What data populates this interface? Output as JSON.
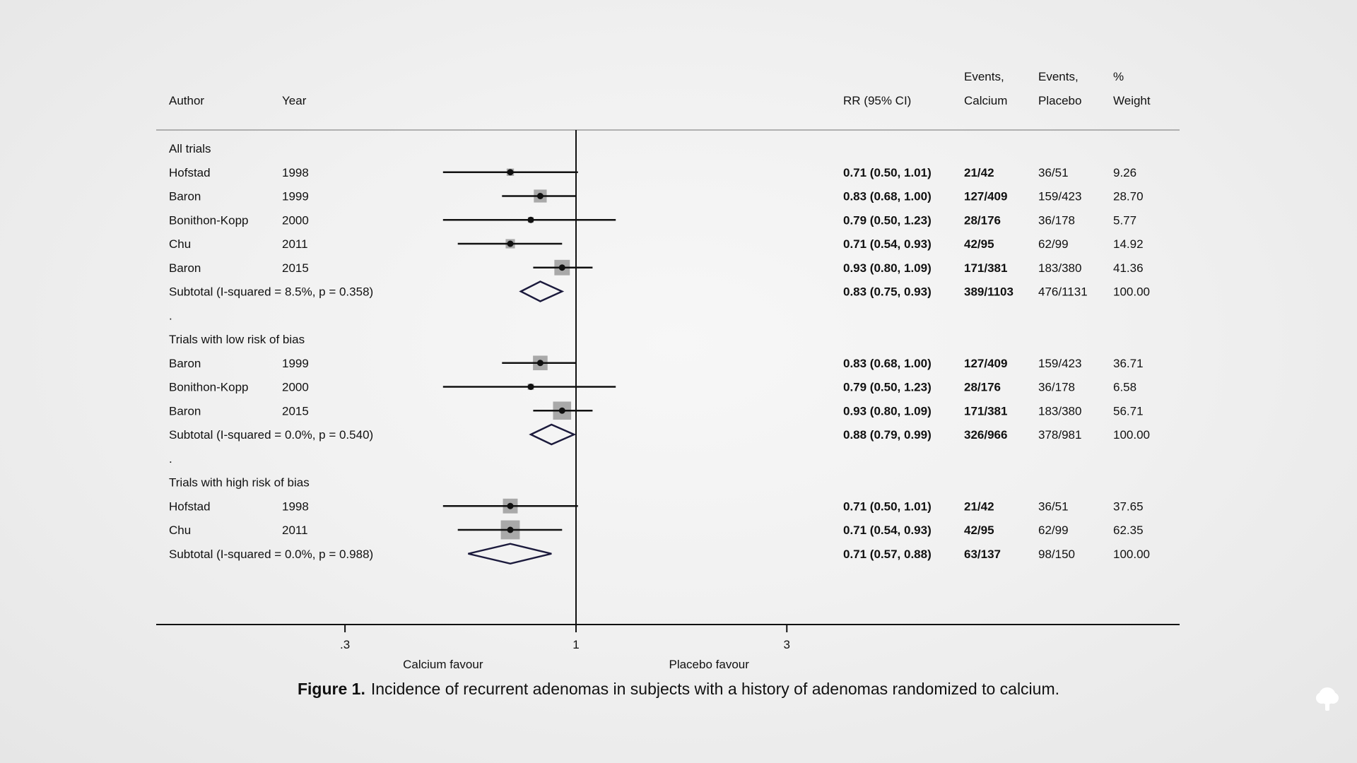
{
  "header": {
    "author": "Author",
    "year": "Year",
    "rr": "RR (95% CI)",
    "events_calcium_1": "Events,",
    "events_calcium_2": "Calcium",
    "events_placebo_1": "Events,",
    "events_placebo_2": "Placebo",
    "weight_1": "%",
    "weight_2": "Weight"
  },
  "rows": [
    {
      "kind": "group",
      "label": "All trials"
    },
    {
      "kind": "study",
      "author": "Hofstad",
      "year": "1998",
      "rr": 0.71,
      "lo": 0.5,
      "hi": 1.01,
      "ci": "0.71 (0.50, 1.01)",
      "ev_ca": "21/42",
      "ev_pl": "36/51",
      "weight": "9.26"
    },
    {
      "kind": "study",
      "author": "Baron",
      "year": "1999",
      "rr": 0.83,
      "lo": 0.68,
      "hi": 1.0,
      "ci": "0.83 (0.68, 1.00)",
      "ev_ca": "127/409",
      "ev_pl": "159/423",
      "weight": "28.70"
    },
    {
      "kind": "study",
      "author": "Bonithon-Kopp",
      "year": "2000",
      "rr": 0.79,
      "lo": 0.5,
      "hi": 1.23,
      "ci": "0.79 (0.50, 1.23)",
      "ev_ca": "28/176",
      "ev_pl": "36/178",
      "weight": "5.77"
    },
    {
      "kind": "study",
      "author": "Chu",
      "year": "2011",
      "rr": 0.71,
      "lo": 0.54,
      "hi": 0.93,
      "ci": "0.71 (0.54, 0.93)",
      "ev_ca": "42/95",
      "ev_pl": "62/99",
      "weight": "14.92"
    },
    {
      "kind": "study",
      "author": "Baron",
      "year": "2015",
      "rr": 0.93,
      "lo": 0.8,
      "hi": 1.09,
      "ci": "0.93 (0.80, 1.09)",
      "ev_ca": "171/381",
      "ev_pl": "183/380",
      "weight": "41.36"
    },
    {
      "kind": "subtotal",
      "label": "Subtotal  (I-squared = 8.5%, p = 0.358)",
      "rr": 0.83,
      "lo": 0.75,
      "hi": 0.93,
      "ci": "0.83 (0.75, 0.93)",
      "ev_ca": "389/1103",
      "ev_pl": "476/1131",
      "weight": "100.00"
    },
    {
      "kind": "spacer",
      "label": "."
    },
    {
      "kind": "group",
      "label": "Trials with low risk of bias"
    },
    {
      "kind": "study",
      "author": "Baron",
      "year": "1999",
      "rr": 0.83,
      "lo": 0.68,
      "hi": 1.0,
      "ci": "0.83 (0.68, 1.00)",
      "ev_ca": "127/409",
      "ev_pl": "159/423",
      "weight": "36.71"
    },
    {
      "kind": "study",
      "author": "Bonithon-Kopp",
      "year": "2000",
      "rr": 0.79,
      "lo": 0.5,
      "hi": 1.23,
      "ci": "0.79 (0.50, 1.23)",
      "ev_ca": "28/176",
      "ev_pl": "36/178",
      "weight": "6.58"
    },
    {
      "kind": "study",
      "author": "Baron",
      "year": "2015",
      "rr": 0.93,
      "lo": 0.8,
      "hi": 1.09,
      "ci": "0.93 (0.80, 1.09)",
      "ev_ca": "171/381",
      "ev_pl": "183/380",
      "weight": "56.71"
    },
    {
      "kind": "subtotal",
      "label": "Subtotal  (I-squared = 0.0%, p = 0.540)",
      "rr": 0.88,
      "lo": 0.79,
      "hi": 0.99,
      "ci": "0.88 (0.79, 0.99)",
      "ev_ca": "326/966",
      "ev_pl": "378/981",
      "weight": "100.00"
    },
    {
      "kind": "spacer",
      "label": "."
    },
    {
      "kind": "group",
      "label": "Trials with high risk of bias"
    },
    {
      "kind": "study",
      "author": "Hofstad",
      "year": "1998",
      "rr": 0.71,
      "lo": 0.5,
      "hi": 1.01,
      "ci": "0.71 (0.50, 1.01)",
      "ev_ca": "21/42",
      "ev_pl": "36/51",
      "weight": "37.65"
    },
    {
      "kind": "study",
      "author": "Chu",
      "year": "2011",
      "rr": 0.71,
      "lo": 0.54,
      "hi": 0.93,
      "ci": "0.71 (0.54, 0.93)",
      "ev_ca": "42/95",
      "ev_pl": "62/99",
      "weight": "62.35"
    },
    {
      "kind": "subtotal",
      "label": "Subtotal  (I-squared = 0.0%, p = 0.988)",
      "rr": 0.71,
      "lo": 0.57,
      "hi": 0.88,
      "ci": "0.71 (0.57, 0.88)",
      "ev_ca": "63/137",
      "ev_pl": "98/150",
      "weight": "100.00"
    }
  ],
  "chart_data": {
    "type": "forest",
    "scale": "log",
    "null_value": 1,
    "xticks": [
      0.3,
      1,
      3
    ],
    "xtick_labels": [
      ".3",
      "1",
      "3"
    ],
    "left_label": "Calcium favour",
    "right_label": "Placebo favour"
  },
  "caption": {
    "label": "Figure 1.",
    "text": "Incidence of recurrent adenomas in subjects with a history of adenomas randomized to calcium."
  },
  "colors": {
    "diamond": "#1b1a3c",
    "box": "#a9a9a9"
  },
  "icons": {
    "corner": "tree-icon"
  }
}
